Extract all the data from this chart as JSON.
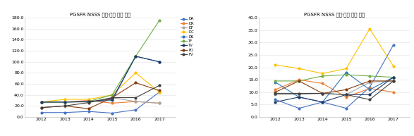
{
  "years": [
    2012,
    2013,
    2014,
    2015,
    2016,
    2017
  ],
  "title1": "PGSFR NSSS 설계·검증 예산 현황",
  "title2": "PGSFR NSSS 설계·검증 인력 현황",
  "series_names": [
    "DA",
    "DR",
    "DF",
    "DC",
    "DS",
    "TF",
    "TV",
    "FD",
    "FV"
  ],
  "colors": [
    "#4472C4",
    "#ED7D31",
    "#A5A5A5",
    "#FFC000",
    "#2E75B6",
    "#70AD47",
    "#1F3864",
    "#843C0C",
    "#404040"
  ],
  "budget_data": [
    [
      8.0,
      8.0,
      10.0,
      7.0,
      13.0,
      45.0
    ],
    [
      27.0,
      27.0,
      30.0,
      25.0,
      28.0,
      25.0
    ],
    [
      27.0,
      27.0,
      27.0,
      35.0,
      28.0,
      25.0
    ],
    [
      27.0,
      32.0,
      32.0,
      40.0,
      80.0,
      45.0
    ],
    [
      27.0,
      27.0,
      28.0,
      30.0,
      110.0,
      100.0
    ],
    [
      27.0,
      27.0,
      28.0,
      40.0,
      110.0,
      175.0
    ],
    [
      27.0,
      27.0,
      28.0,
      32.0,
      110.0,
      100.0
    ],
    [
      17.0,
      20.0,
      15.0,
      35.0,
      62.0,
      48.0
    ],
    [
      17.0,
      20.0,
      26.0,
      35.0,
      35.0,
      57.0
    ]
  ],
  "manpower_data": [
    [
      7.0,
      3.5,
      6.0,
      3.5,
      12.0,
      29.0
    ],
    [
      11.0,
      15.0,
      13.5,
      8.0,
      11.5,
      10.0
    ],
    [
      9.0,
      9.0,
      9.5,
      9.0,
      14.0,
      14.5
    ],
    [
      21.0,
      19.5,
      17.5,
      19.5,
      35.5,
      20.5
    ],
    [
      14.0,
      8.0,
      6.0,
      18.0,
      11.0,
      16.0
    ],
    [
      14.5,
      14.5,
      16.5,
      17.0,
      16.5,
      16.0
    ],
    [
      6.0,
      8.0,
      6.0,
      9.0,
      9.0,
      16.0
    ],
    [
      10.0,
      14.5,
      9.5,
      11.0,
      14.5,
      14.5
    ],
    [
      9.5,
      9.5,
      9.5,
      9.0,
      7.0,
      14.5
    ]
  ],
  "budget_ylim": [
    0,
    180
  ],
  "budget_yticks": [
    0.0,
    20.0,
    40.0,
    60.0,
    80.0,
    100.0,
    120.0,
    140.0,
    160.0,
    180.0
  ],
  "manpower_ylim": [
    0,
    40
  ],
  "manpower_yticks": [
    0.0,
    5.0,
    10.0,
    15.0,
    20.0,
    25.0,
    30.0,
    35.0,
    40.0
  ],
  "background_color": "#FFFFFF",
  "grid_color": "#E0E0E0"
}
